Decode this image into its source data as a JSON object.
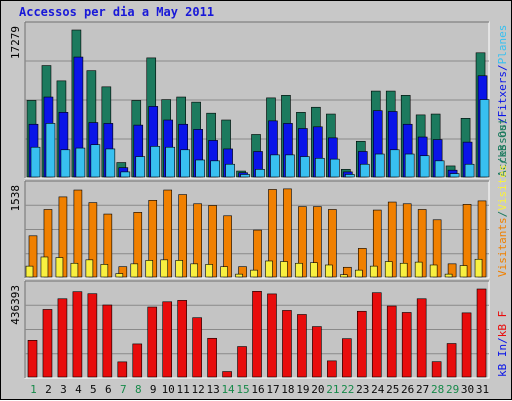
{
  "title": "Accessos per dia a May 2011",
  "colors": {
    "frame_bg": "#c8c8c8",
    "plot_bg": "#c4c4c4",
    "title": "#1818d8",
    "accessos": "#1c7a5e",
    "fitxers": "#0a14e8",
    "planes": "#38c0f0",
    "visitants": "#f08000",
    "visits": "#f8f040",
    "kb": "#e80c0c",
    "weekday_label": "#0a0a0a",
    "weekend_label": "#178a4a"
  },
  "chart_data": {
    "type": "bar",
    "panels": [
      {
        "id": "hits",
        "ymax_label": "17279",
        "ymax": 17279,
        "series": [
          {
            "name": "Accessos",
            "color": "#1c7a5e",
            "values": [
              9000,
              13100,
              11300,
              17279,
              12500,
              10600,
              1700,
              9000,
              14000,
              9100,
              9400,
              8800,
              7500,
              6700,
              700,
              5000,
              9300,
              9600,
              7600,
              8200,
              7400,
              900,
              4200,
              10100,
              10100,
              9600,
              7300,
              7400,
              1300,
              6900,
              14600
            ]
          },
          {
            "name": "Fitxers",
            "color": "#0a14e8",
            "values": [
              6200,
              9400,
              7600,
              14100,
              6400,
              6300,
              1100,
              6100,
              8300,
              6700,
              6200,
              5600,
              4300,
              3300,
              500,
              3000,
              6600,
              6300,
              5700,
              5900,
              4600,
              600,
              3000,
              7800,
              7700,
              6200,
              4700,
              4400,
              800,
              4100,
              11900
            ]
          },
          {
            "name": "Planes",
            "color": "#38c0f0",
            "values": [
              3500,
              6300,
              3200,
              3400,
              3800,
              3300,
              600,
              2400,
              3600,
              3500,
              3200,
              2000,
              1900,
              1500,
              300,
              900,
              2600,
              2600,
              2400,
              2200,
              2100,
              300,
              1500,
              2700,
              3200,
              2700,
              2500,
              1900,
              400,
              1500,
              9100
            ]
          }
        ]
      },
      {
        "id": "visits",
        "ymax_label": "1538",
        "ymax": 1538,
        "series": [
          {
            "name": "Visitants",
            "color": "#f08000",
            "values": [
              720,
              1180,
              1400,
              1520,
              1300,
              1100,
              180,
              1130,
              1340,
              1520,
              1440,
              1280,
              1250,
              1070,
              180,
              820,
              1530,
              1540,
              1230,
              1230,
              1180,
              170,
              500,
              1170,
              1310,
              1280,
              1180,
              1000,
              230,
              1270,
              1330
            ]
          },
          {
            "name": "Visites",
            "color": "#f8f040",
            "values": [
              190,
              350,
              340,
              240,
              300,
              220,
              60,
              230,
              290,
              300,
              290,
              230,
              220,
              180,
              50,
              120,
              280,
              270,
              240,
              250,
              210,
              40,
              120,
              190,
              270,
              240,
              260,
              210,
              50,
              200,
              310
            ]
          }
        ]
      },
      {
        "id": "kb",
        "ymax_label": "436393",
        "ymax": 436393,
        "series": [
          {
            "name": "kB F",
            "color": "#e80c0c",
            "values": [
              182000,
              335000,
              388000,
              423000,
              413000,
              357000,
              75000,
              164000,
              347000,
              373000,
              380000,
              294000,
              192000,
              27000,
              151000,
              425000,
              412000,
              330000,
              310000,
              250000,
              80000,
              190000,
              326000,
              418000,
              352000,
              320000,
              388000,
              76000,
              166000,
              318000,
              436393
            ]
          }
        ]
      }
    ],
    "days": [
      "1",
      "2",
      "3",
      "4",
      "5",
      "6",
      "7",
      "8",
      "9",
      "10",
      "11",
      "12",
      "13",
      "14",
      "15",
      "16",
      "17",
      "18",
      "19",
      "20",
      "21",
      "22",
      "23",
      "24",
      "25",
      "26",
      "27",
      "28",
      "29",
      "30",
      "31"
    ],
    "weekend_days": [
      1,
      7,
      8,
      14,
      15,
      21,
      22,
      28,
      29
    ],
    "grid": true
  },
  "right_legend": {
    "panel1": [
      {
        "text": "Accessos",
        "color": "#1c7a5e"
      },
      {
        "text": "/",
        "color": "#0a14e8"
      },
      {
        "text": "Fitxers",
        "color": "#0a14e8"
      },
      {
        "text": "/",
        "color": "#0a14e8"
      },
      {
        "text": "Planes",
        "color": "#38c0f0"
      }
    ],
    "panel2": [
      {
        "text": "Visitants",
        "color": "#f08000"
      },
      {
        "text": "/",
        "color": "#1c7a5e"
      },
      {
        "text": "Visites",
        "color": "#f8f040"
      },
      {
        "text": "/",
        "color": "#1c7a5e"
      },
      {
        "text": "kB Out",
        "color": "#1c7a5e"
      }
    ],
    "panel3": [
      {
        "text": "kB In",
        "color": "#0a14e8"
      },
      {
        "text": "/",
        "color": "#0a14e8"
      },
      {
        "text": "kB F",
        "color": "#e80c0c"
      }
    ]
  }
}
